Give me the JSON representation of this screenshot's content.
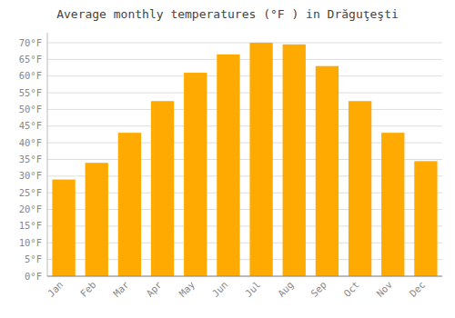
{
  "chart_data": {
    "type": "bar",
    "title": "Average monthly temperatures (°F ) in Drăguţeşti",
    "categories": [
      "Jan",
      "Feb",
      "Mar",
      "Apr",
      "May",
      "Jun",
      "Jul",
      "Aug",
      "Sep",
      "Oct",
      "Nov",
      "Dec"
    ],
    "values": [
      29,
      34,
      43,
      52.5,
      61,
      66.5,
      70,
      69.5,
      63,
      52.5,
      43,
      34.5
    ],
    "color": "#FFAA00",
    "ylim": [
      0,
      73
    ],
    "yticks": [
      {
        "value": 0,
        "label": "0°F"
      },
      {
        "value": 5,
        "label": "5°F"
      },
      {
        "value": 10,
        "label": "10°F"
      },
      {
        "value": 15,
        "label": "15°F"
      },
      {
        "value": 20,
        "label": "20°F"
      },
      {
        "value": 25,
        "label": "25°F"
      },
      {
        "value": 30,
        "label": "30°F"
      },
      {
        "value": 35,
        "label": "35°F"
      },
      {
        "value": 40,
        "label": "40°F"
      },
      {
        "value": 45,
        "label": "45°F"
      },
      {
        "value": 50,
        "label": "50°F"
      },
      {
        "value": 55,
        "label": "55°F"
      },
      {
        "value": 60,
        "label": "60°F"
      },
      {
        "value": 65,
        "label": "65°F"
      },
      {
        "value": 70,
        "label": "70°F"
      }
    ],
    "grid": true
  }
}
